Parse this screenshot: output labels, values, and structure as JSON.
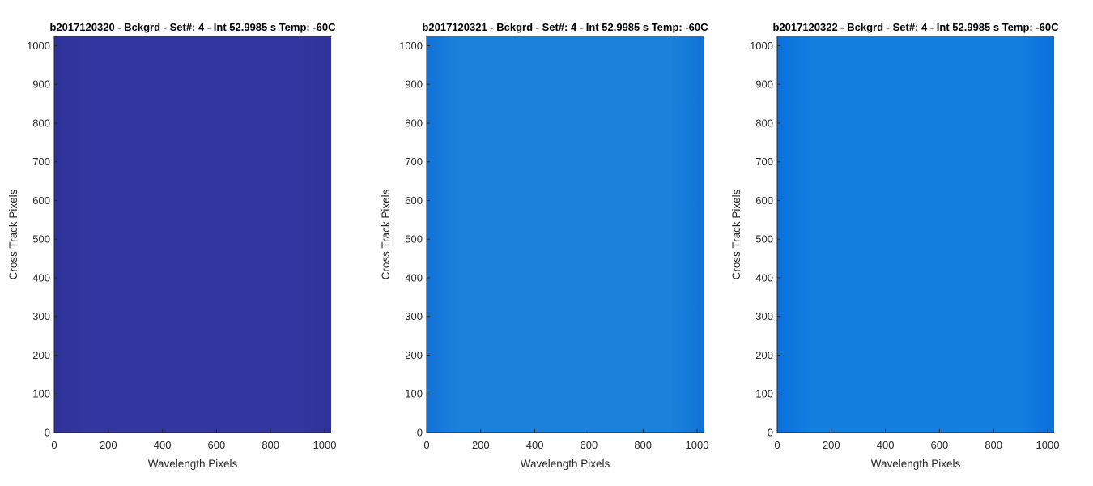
{
  "chart_data": [
    {
      "type": "heatmap",
      "title": "b2017120320 - Bckgrd - Set#: 4 - Int 52.9985 s Temp: -60C",
      "xlabel": "Wavelength Pixels",
      "ylabel": "Cross Track Pixels",
      "xlim": [
        0,
        1024
      ],
      "ylim": [
        0,
        1024
      ],
      "xticks": [
        0,
        200,
        400,
        600,
        800,
        1000
      ],
      "yticks": [
        0,
        100,
        200,
        300,
        400,
        500,
        600,
        700,
        800,
        900,
        1000
      ],
      "fill_color": "#3236a0",
      "edge_tint": "#2f3399",
      "grid": false
    },
    {
      "type": "heatmap",
      "title": "b2017120321 - Bckgrd - Set#: 4 - Int 52.9985 s Temp: -60C",
      "xlabel": "Wavelength Pixels",
      "ylabel": "Cross Track Pixels",
      "xlim": [
        0,
        1024
      ],
      "ylim": [
        0,
        1024
      ],
      "xticks": [
        0,
        200,
        400,
        600,
        800,
        1000
      ],
      "yticks": [
        0,
        100,
        200,
        300,
        400,
        500,
        600,
        700,
        800,
        900,
        1000
      ],
      "fill_color": "#1a82da",
      "edge_tint": "#1172d8",
      "grid": false
    },
    {
      "type": "heatmap",
      "title": "b2017120322 - Bckgrd - Set#: 4 - Int 52.9985 s Temp: -60C",
      "xlabel": "Wavelength Pixels",
      "ylabel": "Cross Track Pixels",
      "xlim": [
        0,
        1024
      ],
      "ylim": [
        0,
        1024
      ],
      "xticks": [
        0,
        200,
        400,
        600,
        800,
        1000
      ],
      "yticks": [
        0,
        100,
        200,
        300,
        400,
        500,
        600,
        700,
        800,
        900,
        1000
      ],
      "fill_color": "#137ede",
      "edge_tint": "#0a70dc",
      "grid": false
    }
  ]
}
